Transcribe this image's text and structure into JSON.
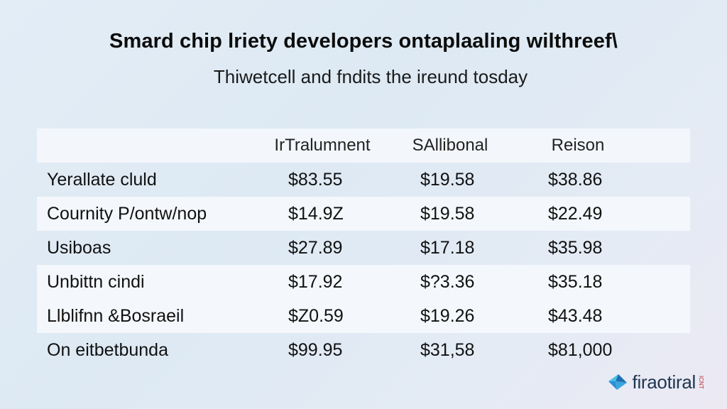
{
  "header": {
    "title": "Smard chip lriety developers ontaplaaling wilthreef\\",
    "subtitle": "Thiwetcell and fndits the ireund tosday"
  },
  "table": {
    "columns": [
      "",
      "IrTralumnent",
      "SAllibonal",
      "Reison"
    ],
    "rows": [
      {
        "label": "Yerallate cluld",
        "values": [
          "$83.55",
          "$19.58",
          "$38.86"
        ]
      },
      {
        "label": "Cournity P/ontw/nop",
        "values": [
          "$14.9Z",
          "$19.58",
          "$22.49"
        ]
      },
      {
        "label": "Usiboas",
        "values": [
          "$27.89",
          "$17.18",
          "$35.98"
        ]
      },
      {
        "label": "Unbittn cindi",
        "values": [
          "$17.92",
          "$?3.36",
          "$35.18"
        ]
      },
      {
        "label": "Llblifnn &Bosraeil",
        "values": [
          "$Z0.59",
          "$19.26",
          "$43.48"
        ]
      },
      {
        "label": "On eitbetbunda",
        "values": [
          "$99.95",
          "$31,58",
          "$81,000"
        ]
      }
    ]
  },
  "logo": {
    "text": "firaotiral",
    "tag": "ICNT",
    "icon": "bird-icon",
    "colors": {
      "primary": "#2a8fd6",
      "secondary": "#47c0e8"
    }
  }
}
